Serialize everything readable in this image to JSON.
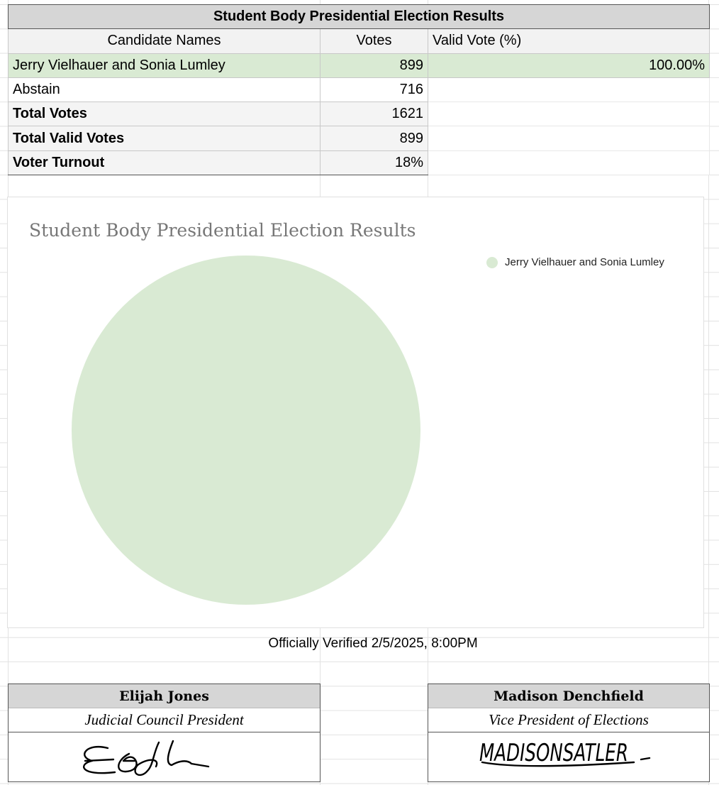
{
  "table": {
    "title": "Student Body Presidential Election Results",
    "headers": [
      "Candidate Names",
      "Votes",
      "Valid Vote (%)"
    ],
    "rows": [
      {
        "name": "Jerry Vielhauer and Sonia Lumley",
        "votes": "899",
        "pct": "100.00%"
      },
      {
        "name": "Abstain",
        "votes": "716",
        "pct": ""
      },
      {
        "name": "Total Votes",
        "votes": "1621",
        "pct": ""
      },
      {
        "name": "Total Valid Votes",
        "votes": "899",
        "pct": ""
      },
      {
        "name": "Voter Turnout",
        "votes": "18%",
        "pct": ""
      }
    ]
  },
  "chart_data": {
    "type": "pie",
    "title": "Student Body Presidential Election Results",
    "categories": [
      "Jerry Vielhauer and Sonia Lumley"
    ],
    "values": [
      899
    ],
    "colors": [
      "#d9ead3"
    ],
    "legend_position": "top-right"
  },
  "verified": "Officially Verified 2/5/2025, 8:00PM",
  "signatures": [
    {
      "name": "Elijah Jones",
      "role": "Judicial Council President"
    },
    {
      "name": "Madison Denchfield",
      "role": "Vice President of Elections",
      "signature_text": "MADISONSATLER"
    }
  ]
}
